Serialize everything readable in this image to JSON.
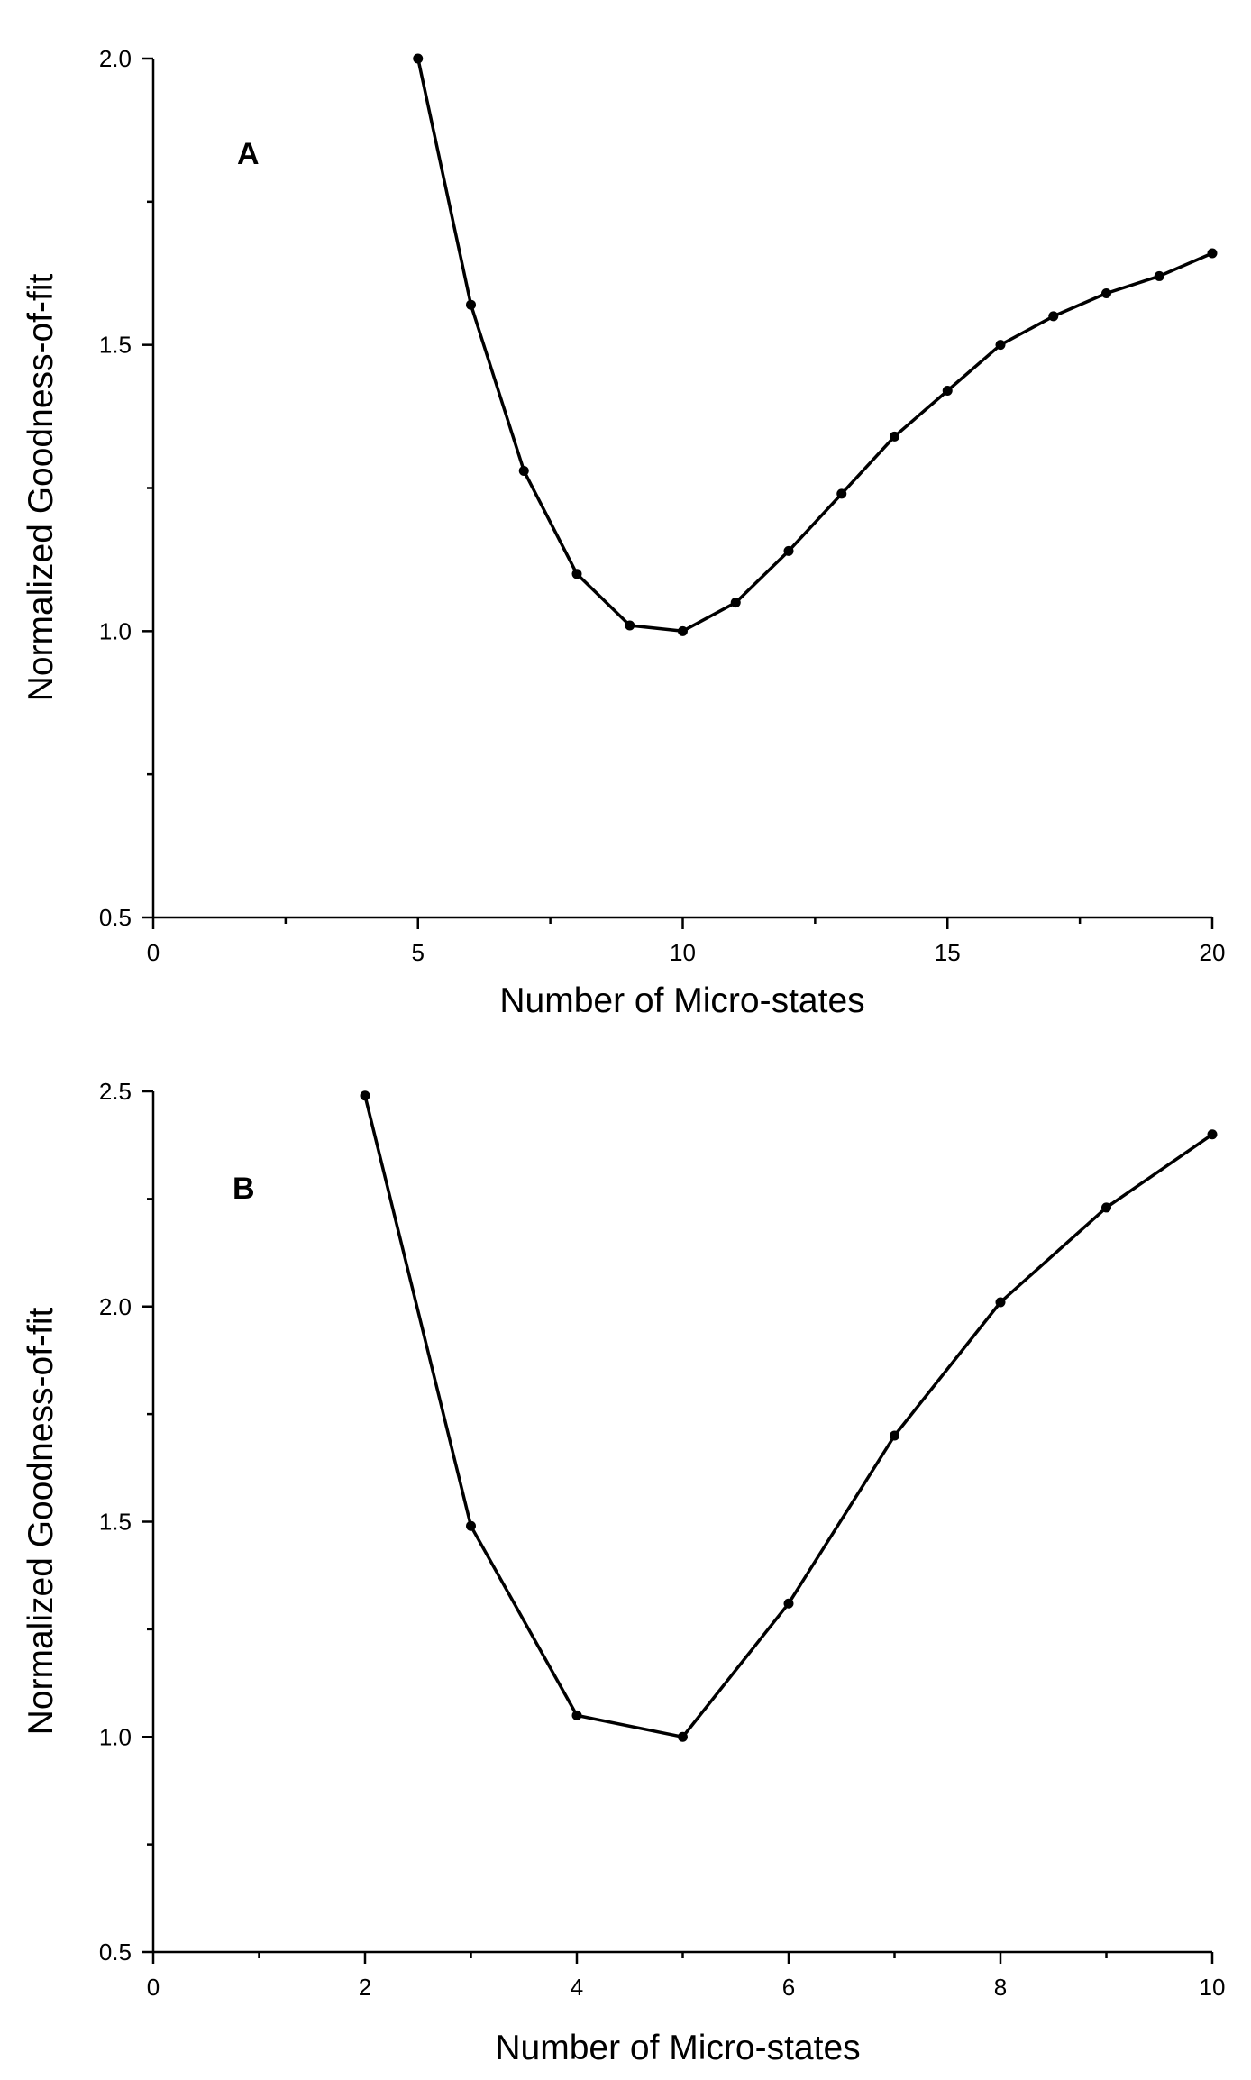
{
  "chart_data": [
    {
      "type": "line",
      "panel_label": "A",
      "xlabel": "Number of Micro-states",
      "ylabel": "Normalized Goodness-of-fit",
      "xlim": [
        0,
        20
      ],
      "ylim": [
        0.5,
        2.0
      ],
      "x_ticks": [
        "0",
        "5",
        "10",
        "15",
        "20"
      ],
      "y_ticks": [
        "0.5",
        "1.0",
        "1.5",
        "2.0"
      ],
      "x_tick_values": [
        0,
        5,
        10,
        15,
        20
      ],
      "y_tick_values": [
        0.5,
        1.0,
        1.5,
        2.0
      ],
      "x_minor_step": 2.5,
      "y_minor_step": 0.25,
      "grid": false,
      "series": [
        {
          "x": [
            5,
            6,
            7,
            8,
            9,
            10,
            11,
            12,
            13,
            14,
            15,
            16,
            17,
            18,
            19,
            20
          ],
          "y": [
            2.0,
            1.57,
            1.28,
            1.1,
            1.01,
            1.0,
            1.05,
            1.14,
            1.24,
            1.34,
            1.42,
            1.5,
            1.55,
            1.59,
            1.62,
            1.66
          ]
        }
      ]
    },
    {
      "type": "line",
      "panel_label": "B",
      "xlabel": "Number of Micro-states",
      "ylabel": "Normalized Goodness-of-fit",
      "xlim": [
        0,
        10
      ],
      "ylim": [
        0.5,
        2.5
      ],
      "x_ticks": [
        "0",
        "2",
        "4",
        "6",
        "8",
        "10"
      ],
      "y_ticks": [
        "0.5",
        "1.0",
        "1.5",
        "2.0",
        "2.5"
      ],
      "x_tick_values": [
        0,
        2,
        4,
        6,
        8,
        10
      ],
      "y_tick_values": [
        0.5,
        1.0,
        1.5,
        2.0,
        2.5
      ],
      "x_minor_step": 1,
      "y_minor_step": 0.25,
      "grid": false,
      "series": [
        {
          "x": [
            2,
            3,
            4,
            5,
            6,
            7,
            8,
            9,
            10
          ],
          "y": [
            2.49,
            1.49,
            1.05,
            1.0,
            1.31,
            1.7,
            2.01,
            2.23,
            2.4
          ]
        }
      ]
    }
  ]
}
